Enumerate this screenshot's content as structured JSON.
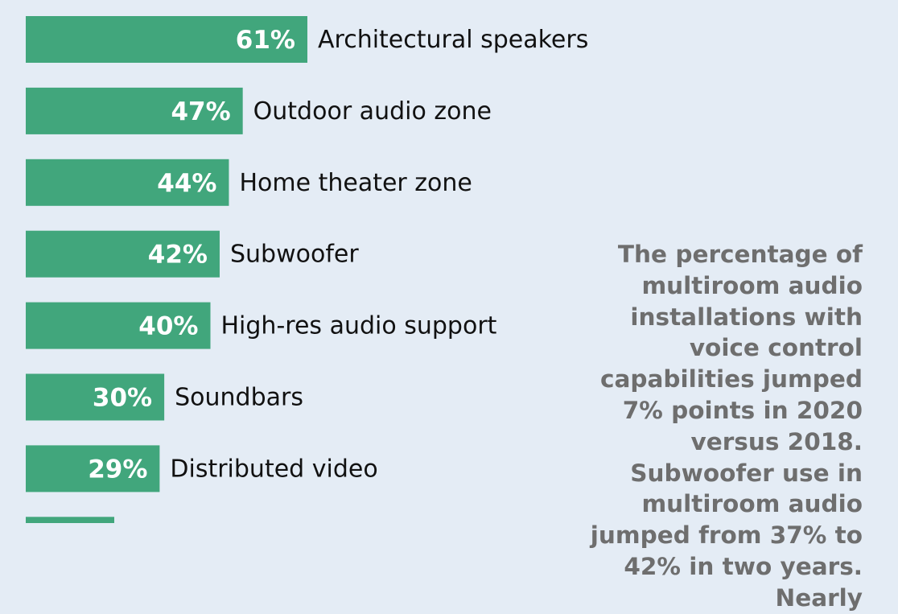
{
  "colors": {
    "background": "#e4ecf5",
    "bar": "#41a67c",
    "value_text": "#ffffff",
    "label_text": "#111111",
    "callout_text": "#6e6e6e"
  },
  "chart_data": {
    "type": "bar",
    "orientation": "horizontal",
    "categories": [
      "Architectural speakers",
      "Outdoor audio zone",
      "Home theater zone",
      "Subwoofer",
      "High-res audio support",
      "Soundbars",
      "Distributed video",
      ""
    ],
    "values": [
      61,
      47,
      44,
      42,
      40,
      30,
      29,
      null
    ],
    "value_labels": [
      "61%",
      "47%",
      "44%",
      "42%",
      "40%",
      "30%",
      "29%",
      ""
    ],
    "unit": "%",
    "xlim": [
      0,
      100
    ],
    "grid": false,
    "legend": "none"
  },
  "callout": {
    "text": "The percentage of mul­tiroom audio installa­tions with voice control capabilities jumped 7% points in 2020 versus 2018. Subwoofer use in multiroom audio jumped from 37% to 42% in two years. Nearly"
  }
}
